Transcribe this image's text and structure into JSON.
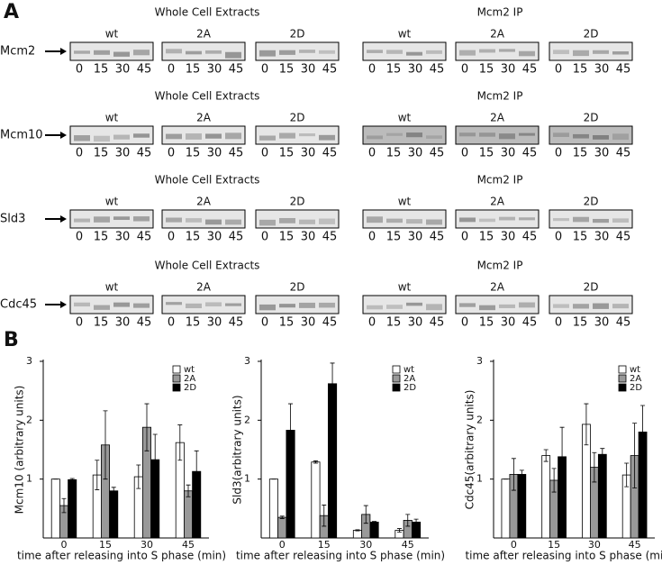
{
  "panel_a": {
    "label": "A",
    "rows": [
      {
        "protein": "Mcm2",
        "extracts": {
          "title": "Whole Cell Extracts",
          "strains": [
            "wt",
            "2A",
            "2D"
          ]
        },
        "ip": {
          "title": "Mcm2 IP",
          "strains": [
            "wt",
            "2A",
            "2D"
          ]
        },
        "timepoints": [
          0,
          15,
          30,
          45
        ]
      },
      {
        "protein": "Mcm10",
        "extracts": {
          "title": "Whole Cell Extracts",
          "strains": [
            "wt",
            "2A",
            "2D"
          ]
        },
        "ip": {
          "title": "Mcm2 IP",
          "strains": [
            "wt",
            "2A",
            "2D"
          ]
        },
        "timepoints": [
          0,
          15,
          30,
          45
        ]
      },
      {
        "protein": "Sld3",
        "extracts": {
          "title": "Whole Cell Extracts",
          "strains": [
            "wt",
            "2A",
            "2D"
          ]
        },
        "ip": {
          "title": "Mcm2 IP",
          "strains": [
            "wt",
            "2A",
            "2D"
          ]
        },
        "timepoints": [
          0,
          15,
          30,
          45
        ]
      },
      {
        "protein": "Cdc45",
        "extracts": {
          "title": "Whole Cell Extracts",
          "strains": [
            "wt",
            "2A",
            "2D"
          ]
        },
        "ip": {
          "title": "Mcm2 IP",
          "strains": [
            "wt",
            "2A",
            "2D"
          ]
        },
        "timepoints": [
          0,
          15,
          30,
          45
        ]
      }
    ]
  },
  "panel_b": {
    "label": "B"
  },
  "chart_data": [
    {
      "type": "bar",
      "y_label": "Mcm10 (arbitrary units)",
      "x_label": "time after releasing into S phase (min)",
      "categories": [
        "0",
        "15",
        "30",
        "45"
      ],
      "ylim": [
        0,
        3
      ],
      "yticks": [
        1,
        2,
        3
      ],
      "legend": "upper right",
      "series": [
        {
          "name": "wt",
          "color": "#ffffff",
          "values": [
            1.0,
            1.07,
            1.04,
            1.62
          ],
          "errors": [
            0,
            0.25,
            0.2,
            0.3
          ]
        },
        {
          "name": "2A",
          "color": "#999999",
          "values": [
            0.55,
            1.58,
            1.88,
            0.8
          ],
          "errors": [
            0.12,
            0.58,
            0.4,
            0.1
          ]
        },
        {
          "name": "2D",
          "color": "#000000",
          "values": [
            0.99,
            0.8,
            1.33,
            1.13
          ],
          "errors": [
            0.02,
            0.06,
            0.43,
            0.35
          ]
        }
      ]
    },
    {
      "type": "bar",
      "y_label": "Sld3(arbitrary units)",
      "x_label": "time after releasing into S phase (min)",
      "categories": [
        "0",
        "15",
        "30",
        "45"
      ],
      "ylim": [
        0,
        3
      ],
      "yticks": [
        1,
        2,
        3
      ],
      "legend": "upper right",
      "series": [
        {
          "name": "wt",
          "color": "#ffffff",
          "values": [
            1.0,
            1.29,
            0.13,
            0.13
          ],
          "errors": [
            0,
            0.02,
            0.01,
            0.03
          ]
        },
        {
          "name": "2A",
          "color": "#999999",
          "values": [
            0.35,
            0.38,
            0.4,
            0.3
          ],
          "errors": [
            0.02,
            0.18,
            0.15,
            0.1
          ]
        },
        {
          "name": "2D",
          "color": "#000000",
          "values": [
            1.83,
            2.62,
            0.27,
            0.27
          ],
          "errors": [
            0.45,
            0.35,
            0.01,
            0.05
          ]
        }
      ]
    },
    {
      "type": "bar",
      "y_label": "Cdc45(arbitrary units)",
      "x_label": "time after releasing into S phase (min)",
      "categories": [
        "0",
        "15",
        "30",
        "45"
      ],
      "ylim": [
        0,
        3
      ],
      "yticks": [
        1,
        2,
        3
      ],
      "legend": "upper right",
      "series": [
        {
          "name": "wt",
          "color": "#ffffff",
          "values": [
            1.0,
            1.4,
            1.93,
            1.07
          ],
          "errors": [
            0,
            0.1,
            0.35,
            0.2
          ]
        },
        {
          "name": "2A",
          "color": "#999999",
          "values": [
            1.08,
            0.98,
            1.2,
            1.4
          ],
          "errors": [
            0.27,
            0.2,
            0.25,
            0.55
          ]
        },
        {
          "name": "2D",
          "color": "#000000",
          "values": [
            1.08,
            1.38,
            1.42,
            1.8
          ],
          "errors": [
            0.07,
            0.5,
            0.1,
            0.45
          ]
        }
      ]
    }
  ]
}
